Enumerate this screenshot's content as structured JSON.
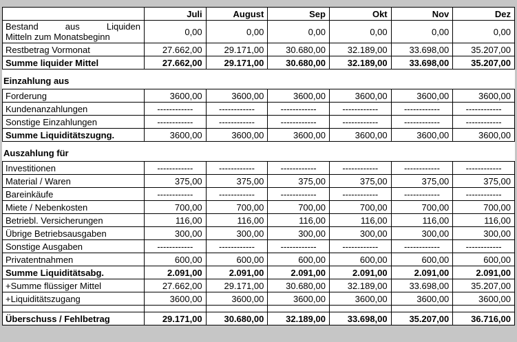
{
  "page": {
    "background_color": "#c6c6c6",
    "table_background": "#ffffff",
    "border_color": "#000000",
    "text_color": "#000000"
  },
  "table": {
    "header": [
      "",
      "Juli",
      "August",
      "Sep",
      "Okt",
      "Nov",
      "Dez"
    ],
    "blocks": [
      {
        "heading": null,
        "rows": [
          {
            "label": "Bestand aus Liquiden Mitteln zum Monatsbeginn",
            "label_lines": [
              "Bestand aus Liquiden",
              "Mitteln zum Monatsbeginn"
            ],
            "values": [
              "0,00",
              "0,00",
              "0,00",
              "0,00",
              "0,00",
              "0,00"
            ]
          },
          {
            "label": "Restbetrag Vormonat",
            "values": [
              "27.662,00",
              "29.171,00",
              "30.680,00",
              "32.189,00",
              "33.698,00",
              "35.207,00"
            ]
          },
          {
            "label": "Summe liquider Mittel",
            "label_bold": true,
            "values_bold": true,
            "values": [
              "27.662,00",
              "29.171,00",
              "30.680,00",
              "32.189,00",
              "33.698,00",
              "35.207,00"
            ]
          }
        ]
      },
      {
        "heading": "Einzahlung aus",
        "rows": [
          {
            "label": "Forderung",
            "values": [
              "3600,00",
              "3600,00",
              "3600,00",
              "3600,00",
              "3600,00",
              "3600,00"
            ]
          },
          {
            "label": "Kundenanzahlungen",
            "values": [
              "------------",
              "------------",
              "------------",
              "------------",
              "------------",
              "------------"
            ]
          },
          {
            "label": "Sonstige Einzahlungen",
            "values": [
              "------------",
              "------------",
              "------------",
              "------------",
              "------------",
              "------------"
            ]
          },
          {
            "label": "Summe Liquiditätszugng.",
            "label_bold": true,
            "values": [
              "3600,00",
              "3600,00",
              "3600,00",
              "3600,00",
              "3600,00",
              "3600,00"
            ]
          }
        ]
      },
      {
        "heading": "Auszahlung für",
        "rows": [
          {
            "label": "Investitionen",
            "values": [
              "------------",
              "------------",
              "------------",
              "------------",
              "------------",
              "------------"
            ]
          },
          {
            "label": "Material / Waren",
            "values": [
              "375,00",
              "375,00",
              "375,00",
              "375,00",
              "375,00",
              "375,00"
            ]
          },
          {
            "label": "Bareinkäufe",
            "values": [
              "------------",
              "------------",
              "------------",
              "------------",
              "------------",
              "------------"
            ]
          },
          {
            "label": "Miete / Nebenkosten",
            "values": [
              "700,00",
              "700,00",
              "700,00",
              "700,00",
              "700,00",
              "700,00"
            ]
          },
          {
            "label": "Betriebl. Versicherungen",
            "values": [
              "116,00",
              "116,00",
              "116,00",
              "116,00",
              "116,00",
              "116,00"
            ]
          },
          {
            "label": "Übrige Betriebsausgaben",
            "values": [
              "300,00",
              "300,00",
              "300,00",
              "300,00",
              "300,00",
              "300,00"
            ]
          },
          {
            "label": "Sonstige Ausgaben",
            "values": [
              "------------",
              "------------",
              "------------",
              "------------",
              "------------",
              "------------"
            ]
          },
          {
            "label": "Privatentnahmen",
            "values": [
              "600,00",
              "600,00",
              "600,00",
              "600,00",
              "600,00",
              "600,00"
            ]
          },
          {
            "label": "Summe Liquiditätsabg.",
            "label_bold": true,
            "values_bold": true,
            "values": [
              "2.091,00",
              "2.091,00",
              "2.091,00",
              "2.091,00",
              "2.091,00",
              "2.091,00"
            ]
          },
          {
            "label": "+Summe flüssiger Mittel",
            "values": [
              "27.662,00",
              "29.171,00",
              "30.680,00",
              "32.189,00",
              "33.698,00",
              "35.207,00"
            ]
          },
          {
            "label": "+Liquiditätszugang",
            "values": [
              "3600,00",
              "3600,00",
              "3600,00",
              "3600,00",
              "3600,00",
              "3600,00"
            ]
          },
          {
            "label": "",
            "spacer": true,
            "values": [
              "",
              "",
              "",
              "",
              "",
              ""
            ]
          },
          {
            "label": "Überschuss / Fehlbetrag",
            "label_bold": true,
            "values_bold": true,
            "values": [
              "29.171,00",
              "30.680,00",
              "32.189,00",
              "33.698,00",
              "35.207,00",
              "36.716,00"
            ]
          }
        ]
      }
    ]
  }
}
